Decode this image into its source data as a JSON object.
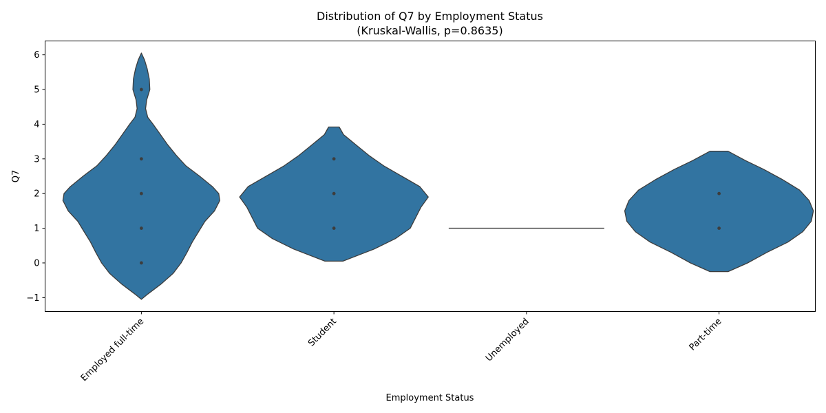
{
  "chart_data": {
    "type": "violin",
    "title": "Distribution of Q7 by Employment Status",
    "subtitle": "(Kruskal-Wallis, p=0.8635)",
    "xlabel": "Employment Status",
    "ylabel": "Q7",
    "ylim": [
      -1.4,
      6.4
    ],
    "yticks": [
      -1,
      0,
      1,
      2,
      3,
      4,
      5,
      6
    ],
    "categories": [
      "Employed full-time",
      "Student",
      "Unemployed",
      "Part-time"
    ],
    "fill_color": "#3274a1",
    "edge_color": "#3d3d3d",
    "violins": [
      {
        "category": "Employed full-time",
        "points": [
          0,
          1,
          2,
          3,
          5
        ],
        "profile": [
          [
            -1.05,
            0.0
          ],
          [
            -0.9,
            0.12
          ],
          [
            -0.6,
            0.38
          ],
          [
            -0.3,
            0.6
          ],
          [
            0.0,
            0.75
          ],
          [
            0.3,
            0.86
          ],
          [
            0.6,
            0.96
          ],
          [
            0.9,
            1.08
          ],
          [
            1.2,
            1.2
          ],
          [
            1.5,
            1.38
          ],
          [
            1.8,
            1.48
          ],
          [
            2.0,
            1.46
          ],
          [
            2.2,
            1.34
          ],
          [
            2.5,
            1.1
          ],
          [
            2.8,
            0.84
          ],
          [
            3.1,
            0.66
          ],
          [
            3.4,
            0.5
          ],
          [
            3.7,
            0.36
          ],
          [
            4.0,
            0.22
          ],
          [
            4.2,
            0.12
          ],
          [
            4.45,
            0.08
          ],
          [
            4.7,
            0.1
          ],
          [
            5.0,
            0.16
          ],
          [
            5.3,
            0.15
          ],
          [
            5.6,
            0.11
          ],
          [
            5.85,
            0.06
          ],
          [
            6.05,
            0.0
          ]
        ]
      },
      {
        "category": "Student",
        "points": [
          1,
          2,
          3
        ],
        "profile": [
          [
            0.05,
            0.17
          ],
          [
            0.4,
            0.76
          ],
          [
            0.7,
            1.16
          ],
          [
            1.0,
            1.44
          ],
          [
            1.3,
            1.54
          ],
          [
            1.6,
            1.64
          ],
          [
            1.9,
            1.78
          ],
          [
            2.2,
            1.62
          ],
          [
            2.5,
            1.28
          ],
          [
            2.8,
            0.94
          ],
          [
            3.1,
            0.66
          ],
          [
            3.4,
            0.42
          ],
          [
            3.7,
            0.18
          ],
          [
            3.92,
            0.1
          ]
        ]
      },
      {
        "category": "Unemployed",
        "points": [],
        "line_value": 1,
        "profile": []
      },
      {
        "category": "Part-time",
        "points": [
          1,
          2
        ],
        "profile": [
          [
            -0.25,
            0.17
          ],
          [
            0.0,
            0.54
          ],
          [
            0.3,
            0.9
          ],
          [
            0.6,
            1.3
          ],
          [
            0.9,
            1.58
          ],
          [
            1.2,
            1.74
          ],
          [
            1.5,
            1.78
          ],
          [
            1.8,
            1.7
          ],
          [
            2.1,
            1.52
          ],
          [
            2.4,
            1.2
          ],
          [
            2.7,
            0.84
          ],
          [
            2.95,
            0.5
          ],
          [
            3.22,
            0.17
          ]
        ]
      }
    ]
  }
}
